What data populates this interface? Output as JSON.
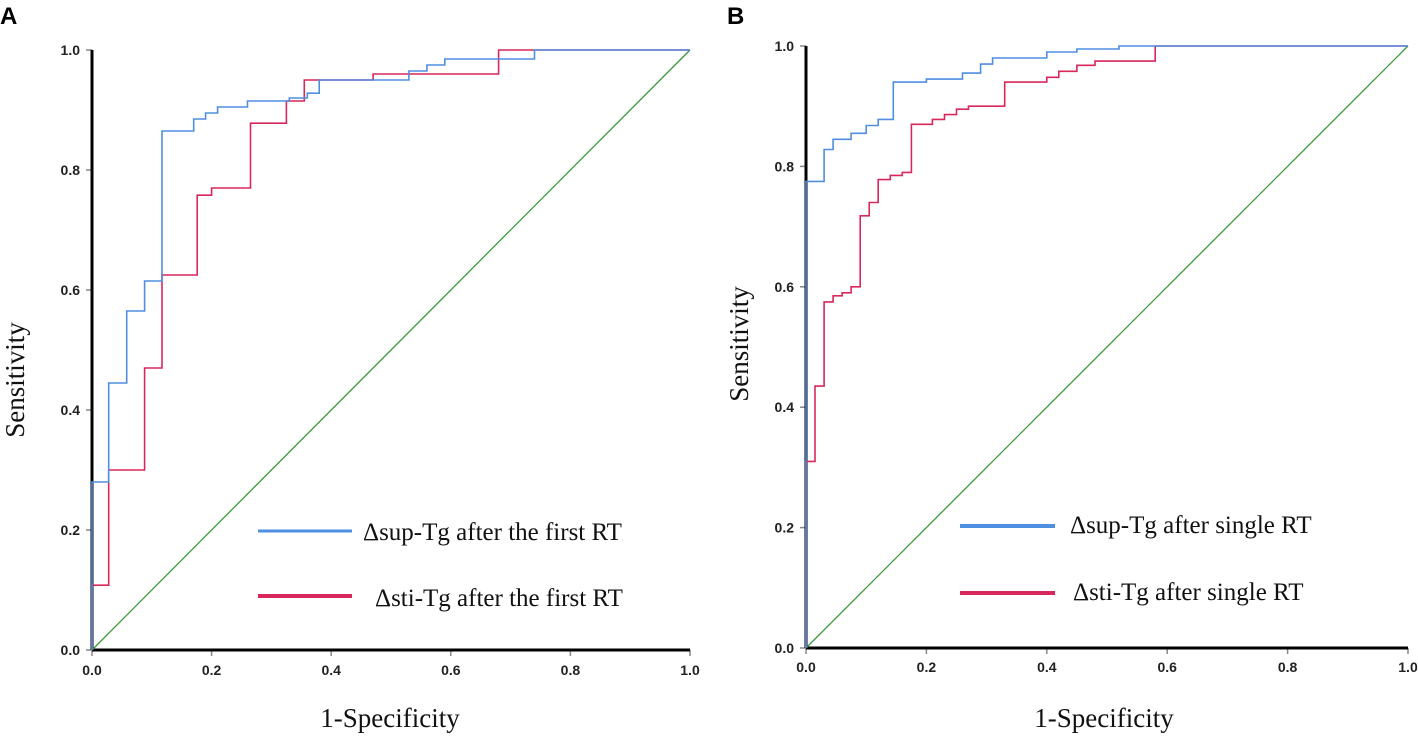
{
  "chart_data": [
    {
      "type": "line",
      "panel_label": "A",
      "xlabel": "1-Specificity",
      "ylabel": "Sensitivity",
      "xlim": [
        0,
        1
      ],
      "ylim": [
        0,
        1
      ],
      "x_ticks": [
        "0.0",
        "0.2",
        "0.4",
        "0.6",
        "0.8",
        "1.0"
      ],
      "y_ticks": [
        "0.0",
        "0.2",
        "0.4",
        "0.6",
        "0.8",
        "1.0"
      ],
      "legend_position": "bottom-right",
      "series": [
        {
          "name": "Δsup-Tg after the first RT",
          "color": "#4f8fe0",
          "points": [
            [
              0,
              0
            ],
            [
              0,
              0.28
            ],
            [
              0.028,
              0.28
            ],
            [
              0.028,
              0.445
            ],
            [
              0.058,
              0.445
            ],
            [
              0.058,
              0.565
            ],
            [
              0.088,
              0.565
            ],
            [
              0.088,
              0.615
            ],
            [
              0.117,
              0.615
            ],
            [
              0.117,
              0.865
            ],
            [
              0.17,
              0.865
            ],
            [
              0.17,
              0.885
            ],
            [
              0.19,
              0.885
            ],
            [
              0.19,
              0.895
            ],
            [
              0.21,
              0.895
            ],
            [
              0.21,
              0.905
            ],
            [
              0.26,
              0.905
            ],
            [
              0.26,
              0.915
            ],
            [
              0.33,
              0.915
            ],
            [
              0.33,
              0.92
            ],
            [
              0.36,
              0.92
            ],
            [
              0.36,
              0.928
            ],
            [
              0.38,
              0.928
            ],
            [
              0.38,
              0.95
            ],
            [
              0.53,
              0.95
            ],
            [
              0.53,
              0.965
            ],
            [
              0.56,
              0.965
            ],
            [
              0.56,
              0.975
            ],
            [
              0.59,
              0.975
            ],
            [
              0.59,
              0.985
            ],
            [
              0.74,
              0.985
            ],
            [
              0.74,
              1.0
            ],
            [
              1.0,
              1.0
            ]
          ]
        },
        {
          "name": "Δsti-Tg after the first RT",
          "color": "#d8275a",
          "points": [
            [
              0,
              0
            ],
            [
              0,
              0.108
            ],
            [
              0.028,
              0.108
            ],
            [
              0.028,
              0.3
            ],
            [
              0.088,
              0.3
            ],
            [
              0.088,
              0.47
            ],
            [
              0.117,
              0.47
            ],
            [
              0.117,
              0.625
            ],
            [
              0.176,
              0.625
            ],
            [
              0.176,
              0.758
            ],
            [
              0.2,
              0.758
            ],
            [
              0.2,
              0.77
            ],
            [
              0.265,
              0.77
            ],
            [
              0.265,
              0.878
            ],
            [
              0.325,
              0.878
            ],
            [
              0.325,
              0.915
            ],
            [
              0.355,
              0.915
            ],
            [
              0.355,
              0.95
            ],
            [
              0.47,
              0.95
            ],
            [
              0.47,
              0.96
            ],
            [
              0.68,
              0.96
            ],
            [
              0.68,
              1.0
            ],
            [
              1.0,
              1.0
            ]
          ]
        },
        {
          "name": "reference",
          "color": "#3a9a3a",
          "points": [
            [
              0,
              0
            ],
            [
              1,
              1
            ]
          ]
        }
      ]
    },
    {
      "type": "line",
      "panel_label": "B",
      "xlabel": "1-Specificity",
      "ylabel": "Sensitivity",
      "xlim": [
        0,
        1
      ],
      "ylim": [
        0,
        1
      ],
      "x_ticks": [
        "0.0",
        "0.2",
        "0.4",
        "0.6",
        "0.8",
        "1.0"
      ],
      "y_ticks": [
        "0.0",
        "0.2",
        "0.4",
        "0.6",
        "0.8",
        "1.0"
      ],
      "legend_position": "bottom-right",
      "series": [
        {
          "name": "Δsup-Tg after single RT",
          "color": "#4f8fe0",
          "points": [
            [
              0,
              0
            ],
            [
              0,
              0.775
            ],
            [
              0.03,
              0.775
            ],
            [
              0.03,
              0.828
            ],
            [
              0.045,
              0.828
            ],
            [
              0.045,
              0.845
            ],
            [
              0.075,
              0.845
            ],
            [
              0.075,
              0.855
            ],
            [
              0.1,
              0.855
            ],
            [
              0.1,
              0.868
            ],
            [
              0.12,
              0.868
            ],
            [
              0.12,
              0.878
            ],
            [
              0.145,
              0.878
            ],
            [
              0.145,
              0.94
            ],
            [
              0.2,
              0.94
            ],
            [
              0.2,
              0.945
            ],
            [
              0.26,
              0.945
            ],
            [
              0.26,
              0.955
            ],
            [
              0.29,
              0.955
            ],
            [
              0.29,
              0.97
            ],
            [
              0.31,
              0.97
            ],
            [
              0.31,
              0.98
            ],
            [
              0.4,
              0.98
            ],
            [
              0.4,
              0.99
            ],
            [
              0.45,
              0.99
            ],
            [
              0.45,
              0.995
            ],
            [
              0.52,
              0.995
            ],
            [
              0.52,
              1.0
            ],
            [
              1.0,
              1.0
            ]
          ]
        },
        {
          "name": "Δsti-Tg after single RT",
          "color": "#d8275a",
          "points": [
            [
              0,
              0
            ],
            [
              0,
              0.31
            ],
            [
              0.015,
              0.31
            ],
            [
              0.015,
              0.435
            ],
            [
              0.03,
              0.435
            ],
            [
              0.03,
              0.575
            ],
            [
              0.045,
              0.575
            ],
            [
              0.045,
              0.585
            ],
            [
              0.06,
              0.585
            ],
            [
              0.06,
              0.59
            ],
            [
              0.075,
              0.59
            ],
            [
              0.075,
              0.6
            ],
            [
              0.09,
              0.6
            ],
            [
              0.09,
              0.718
            ],
            [
              0.105,
              0.718
            ],
            [
              0.105,
              0.74
            ],
            [
              0.12,
              0.74
            ],
            [
              0.12,
              0.778
            ],
            [
              0.14,
              0.778
            ],
            [
              0.14,
              0.785
            ],
            [
              0.16,
              0.785
            ],
            [
              0.16,
              0.79
            ],
            [
              0.175,
              0.79
            ],
            [
              0.175,
              0.87
            ],
            [
              0.21,
              0.87
            ],
            [
              0.21,
              0.878
            ],
            [
              0.23,
              0.878
            ],
            [
              0.23,
              0.886
            ],
            [
              0.25,
              0.886
            ],
            [
              0.25,
              0.895
            ],
            [
              0.27,
              0.895
            ],
            [
              0.27,
              0.9
            ],
            [
              0.33,
              0.9
            ],
            [
              0.33,
              0.94
            ],
            [
              0.4,
              0.94
            ],
            [
              0.4,
              0.948
            ],
            [
              0.42,
              0.948
            ],
            [
              0.42,
              0.958
            ],
            [
              0.45,
              0.958
            ],
            [
              0.45,
              0.968
            ],
            [
              0.48,
              0.968
            ],
            [
              0.48,
              0.975
            ],
            [
              0.58,
              0.975
            ],
            [
              0.58,
              1.0
            ],
            [
              1.0,
              1.0
            ]
          ]
        },
        {
          "name": "reference",
          "color": "#3a9a3a",
          "points": [
            [
              0,
              0
            ],
            [
              1,
              1
            ]
          ]
        }
      ]
    }
  ]
}
